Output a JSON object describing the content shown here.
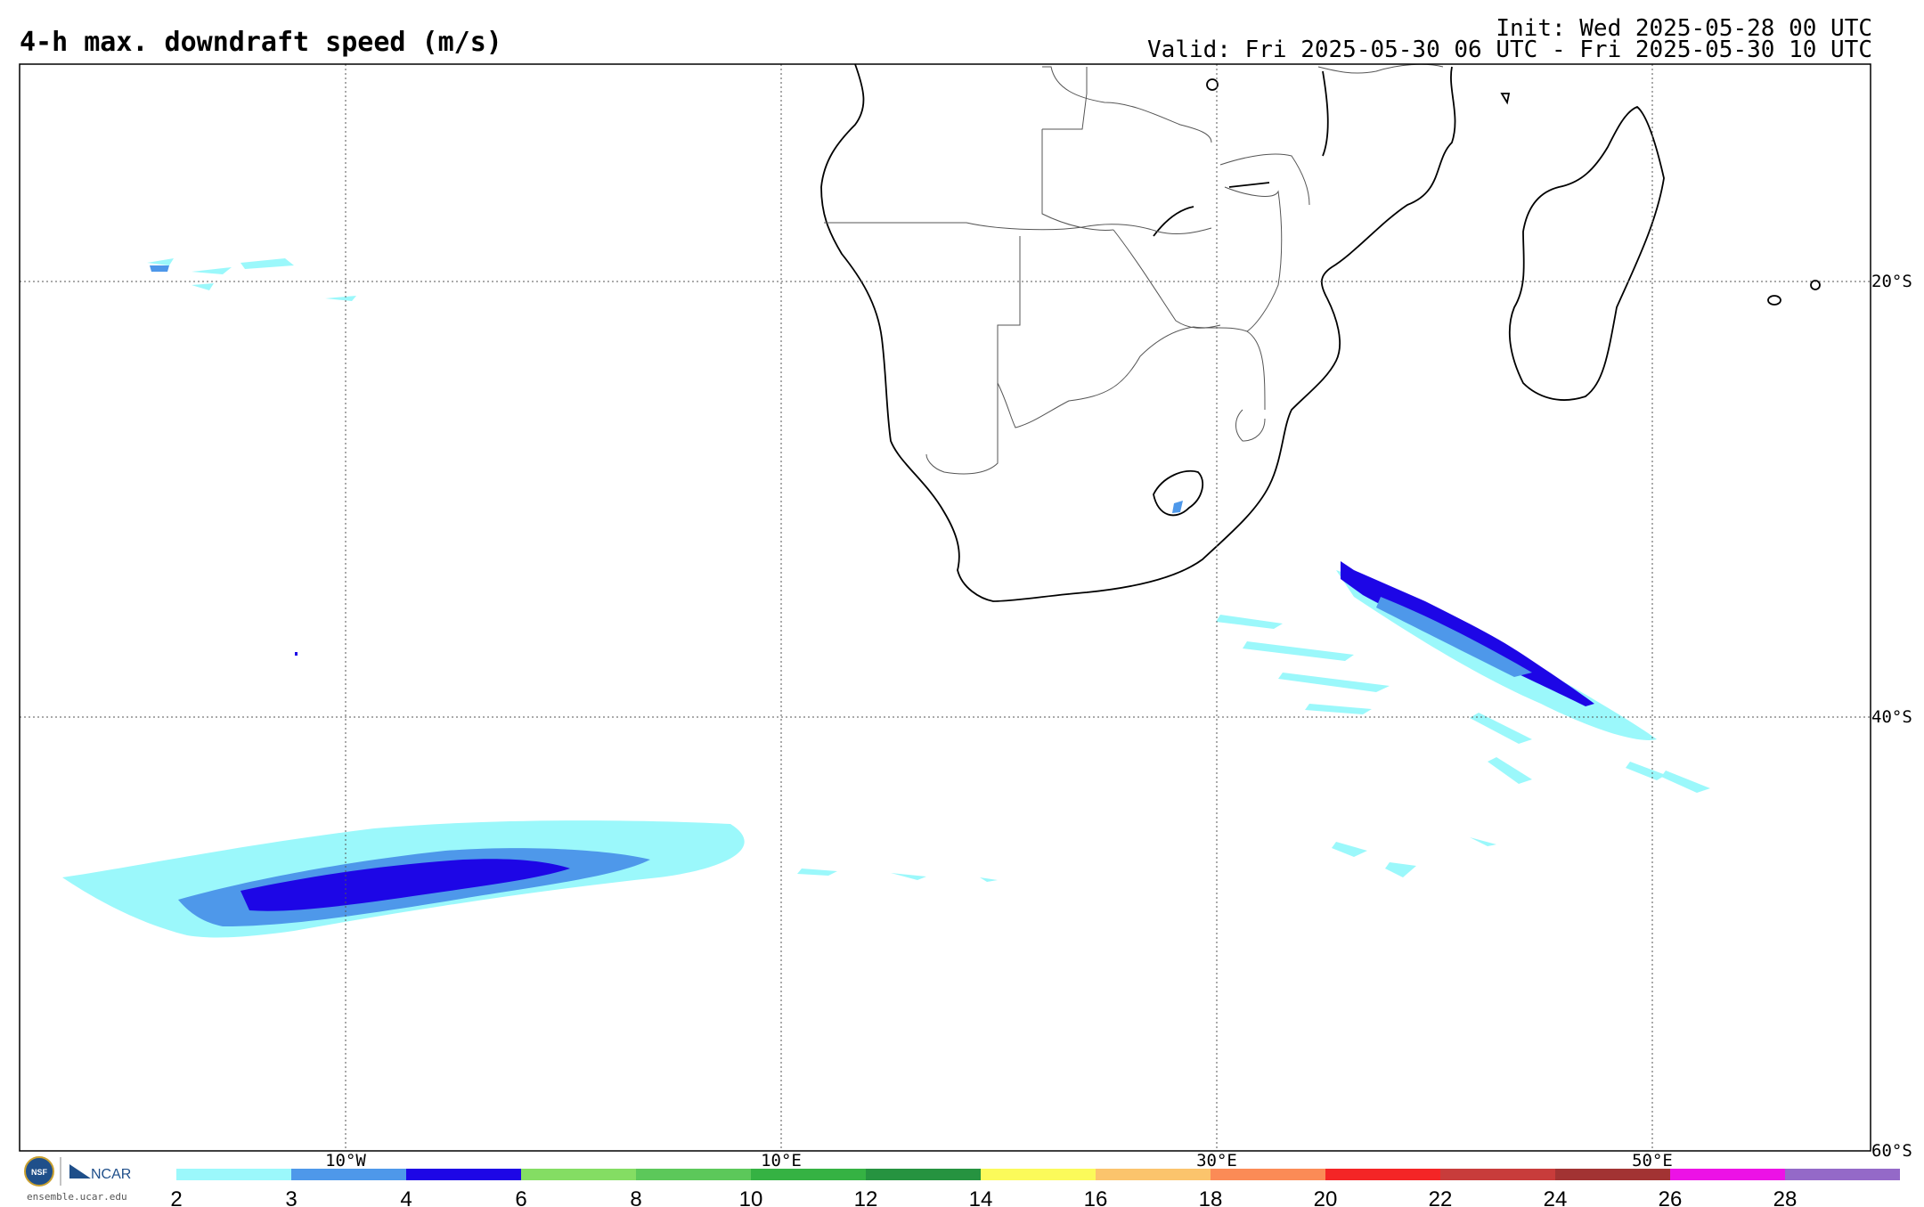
{
  "header": {
    "title": "4-h max. downdraft speed (m/s)",
    "init": "Init: Wed 2025-05-28 00 UTC",
    "valid": "Valid: Fri 2025-05-30 06 UTC - Fri 2025-05-30 10 UTC"
  },
  "map": {
    "lon_labels": [
      "10°W",
      "10°E",
      "30°E",
      "50°E"
    ],
    "lat_labels": [
      "20°S",
      "40°S",
      "60°S"
    ]
  },
  "colorbar": {
    "ticks": [
      "2",
      "3",
      "4",
      "6",
      "8",
      "10",
      "12",
      "14",
      "16",
      "18",
      "20",
      "22",
      "24",
      "26",
      "28"
    ],
    "colors": [
      "#9bf8fb",
      "#4e98ea",
      "#1d06e6",
      "#84dd63",
      "#5cc85a",
      "#35b243",
      "#269340",
      "#fbfa5a",
      "#fbc46c",
      "#fb8b56",
      "#f42526",
      "#c83c3b",
      "#a23333",
      "#ec12e6",
      "#9469c8"
    ]
  },
  "logo": {
    "nsf": "NSF",
    "ncar": "NCAR",
    "url": "ensemble.ucar.edu"
  },
  "colors": {
    "light_cyan": "#9bf8fb",
    "mid_blue": "#4e98ea",
    "dark_blue": "#1d06e6"
  }
}
